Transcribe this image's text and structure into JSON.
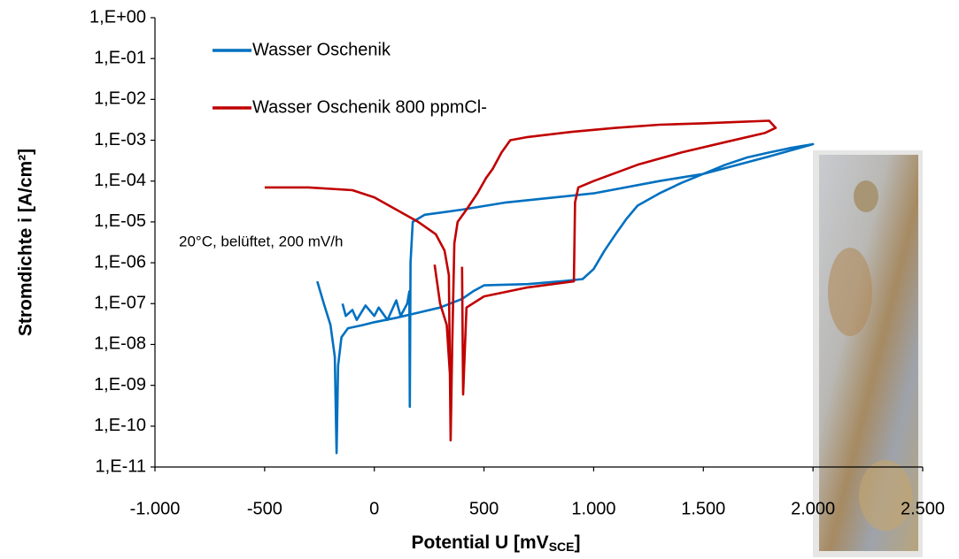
{
  "chart_data": {
    "type": "line",
    "ylabel": "Stromdichte i [A/cm²]",
    "xlabel": {
      "text": "Potential U [mV",
      "sub": "SCE",
      "suffix": "]"
    },
    "annotation": "20°C, belüftet, 200 mV/h",
    "yscale": "log",
    "legend": "top-left",
    "xlim": [
      -1000,
      2500
    ],
    "xticks": [
      {
        "value": -1000,
        "label": "-1.000"
      },
      -500,
      0,
      500,
      {
        "value": 1000,
        "label": "1.000"
      },
      {
        "value": 1500,
        "label": "1.500"
      },
      {
        "value": 2000,
        "label": "2.000"
      },
      {
        "value": 2500,
        "label": "2.500"
      }
    ],
    "ylim": [
      1e-11,
      1
    ],
    "yticks": [
      {
        "value": 1,
        "label": "1,E+00"
      },
      {
        "value": 0.1,
        "label": "1,E-01"
      },
      {
        "value": 0.01,
        "label": "1,E-02"
      },
      {
        "value": 0.001,
        "label": "1,E-03"
      },
      {
        "value": 0.0001,
        "label": "1,E-04"
      },
      {
        "value": 1e-05,
        "label": "1,E-05"
      },
      {
        "value": 1e-06,
        "label": "1,E-06"
      },
      {
        "value": 1e-07,
        "label": "1,E-07"
      },
      {
        "value": 1e-08,
        "label": "1,E-08"
      },
      {
        "value": 1e-09,
        "label": "1,E-09"
      },
      {
        "value": 1e-10,
        "label": "1,E-10"
      },
      {
        "value": 1e-11,
        "label": "1,E-11"
      }
    ],
    "series": [
      {
        "name": "Wasser Oschenik",
        "color": "#0070c0",
        "x": [
          -260,
          -230,
          -200,
          -180,
          -172,
          -165,
          -150,
          -120,
          -50,
          0,
          100,
          200,
          300,
          400,
          450,
          500,
          700,
          850,
          950,
          1000,
          1050,
          1100,
          1150,
          1200,
          1300,
          1400,
          1500,
          1600,
          1700,
          1800,
          1900,
          2000,
          1800,
          1500,
          1300,
          1000,
          600,
          400,
          230,
          175,
          165,
          162,
          160,
          150,
          120,
          100,
          60,
          20,
          0,
          -40,
          -80,
          -100,
          -130,
          -145
        ],
        "y": [
          3.5e-07,
          1e-07,
          3e-08,
          5e-09,
          2.2e-11,
          3e-09,
          1.5e-08,
          2.5e-08,
          3e-08,
          3.5e-08,
          4.5e-08,
          6e-08,
          8e-08,
          1.3e-07,
          2e-07,
          2.8e-07,
          3e-07,
          3.5e-07,
          4e-07,
          7e-07,
          2e-06,
          5e-06,
          1.2e-05,
          2.5e-05,
          5e-05,
          9e-05,
          0.00015,
          0.00025,
          0.00038,
          0.0005,
          0.00065,
          0.0008,
          0.0004,
          0.00015,
          0.0001,
          5e-05,
          3e-05,
          2e-05,
          1.5e-05,
          1e-05,
          1e-06,
          3e-10,
          2e-07,
          1e-07,
          5e-08,
          1.2e-07,
          4e-08,
          8e-08,
          5e-08,
          9e-08,
          4e-08,
          7e-08,
          5e-08,
          1e-07
        ]
      },
      {
        "name": "Wasser Oschenik 800 ppmCl-",
        "color": "#c00000",
        "x": [
          -500,
          -300,
          -100,
          0,
          100,
          200,
          280,
          320,
          340,
          348,
          355,
          365,
          380,
          420,
          470,
          510,
          540,
          580,
          620,
          700,
          900,
          1100,
          1300,
          1500,
          1650,
          1800,
          1830,
          1780,
          1600,
          1400,
          1200,
          1000,
          930,
          915,
          910,
          700,
          500,
          420,
          405,
          400,
          null,
          275,
          300,
          330,
          348
        ],
        "y": [
          7e-05,
          7e-05,
          6e-05,
          4e-05,
          2e-05,
          1e-05,
          5e-06,
          2e-06,
          5e-07,
          4.5e-11,
          1e-08,
          3e-06,
          1e-05,
          2e-05,
          5e-05,
          0.00012,
          0.0002,
          0.0005,
          0.001,
          0.0012,
          0.0016,
          0.002,
          0.0024,
          0.0026,
          0.0028,
          0.003,
          0.002,
          0.0015,
          0.0009,
          0.0005,
          0.00025,
          0.0001,
          7e-05,
          3e-05,
          3.5e-07,
          2.5e-07,
          1.5e-07,
          8e-08,
          6e-10,
          8e-07,
          null,
          9e-07,
          1e-07,
          3e-08,
          1e-09
        ]
      }
    ]
  }
}
